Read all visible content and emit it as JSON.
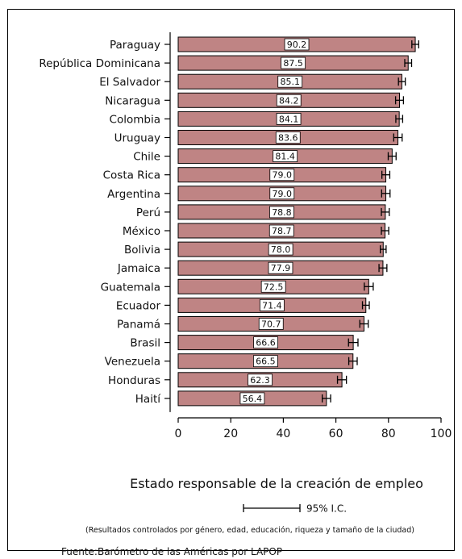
{
  "chart_data": {
    "type": "bar",
    "orientation": "horizontal",
    "categories": [
      "Paraguay",
      "República Dominicana",
      "El Salvador",
      "Nicaragua",
      "Colombia",
      "Uruguay",
      "Chile",
      "Costa Rica",
      "Argentina",
      "Perú",
      "México",
      "Bolivia",
      "Jamaica",
      "Guatemala",
      "Ecuador",
      "Panamá",
      "Brasil",
      "Venezuela",
      "Honduras",
      "Haití"
    ],
    "values": [
      90.2,
      87.5,
      85.1,
      84.2,
      84.1,
      83.6,
      81.4,
      79.0,
      79.0,
      78.8,
      78.7,
      78.0,
      77.9,
      72.5,
      71.4,
      70.7,
      66.6,
      66.5,
      62.3,
      56.4
    ],
    "value_labels": [
      "90.2",
      "87.5",
      "85.1",
      "84.2",
      "84.1",
      "83.6",
      "81.4",
      "79.0",
      "79.0",
      "78.8",
      "78.7",
      "78.0",
      "77.9",
      "72.5",
      "71.4",
      "70.7",
      "66.6",
      "66.5",
      "62.3",
      "56.4"
    ],
    "ci_low": [
      88.9,
      86.2,
      83.8,
      82.7,
      82.8,
      82.0,
      79.9,
      77.5,
      77.4,
      77.3,
      77.3,
      76.9,
      76.4,
      70.8,
      70.1,
      69.1,
      64.8,
      64.9,
      60.6,
      54.8
    ],
    "ci_high": [
      91.5,
      88.8,
      86.4,
      85.7,
      85.4,
      85.2,
      82.9,
      80.5,
      80.6,
      80.3,
      80.1,
      79.1,
      79.4,
      74.2,
      72.7,
      72.3,
      68.4,
      68.1,
      64.0,
      58.0
    ],
    "xlim": [
      0,
      100
    ],
    "xticks": [
      "0",
      "20",
      "40",
      "60",
      "80",
      "100"
    ],
    "xlabel": "Estado responsable de la creación de empleo",
    "title": "",
    "ylabel": "",
    "grid": false,
    "legend": {
      "text": "95% I.C.",
      "placement": "bottom"
    },
    "bar_color": "#bf8484",
    "bar_edge_color": "#000000"
  },
  "note": "(Resultados controlados por género, edad, educación, riqueza y tamaño de la ciudad)",
  "source": "Fuente:Barómetro de las Américas por  LAPOP"
}
